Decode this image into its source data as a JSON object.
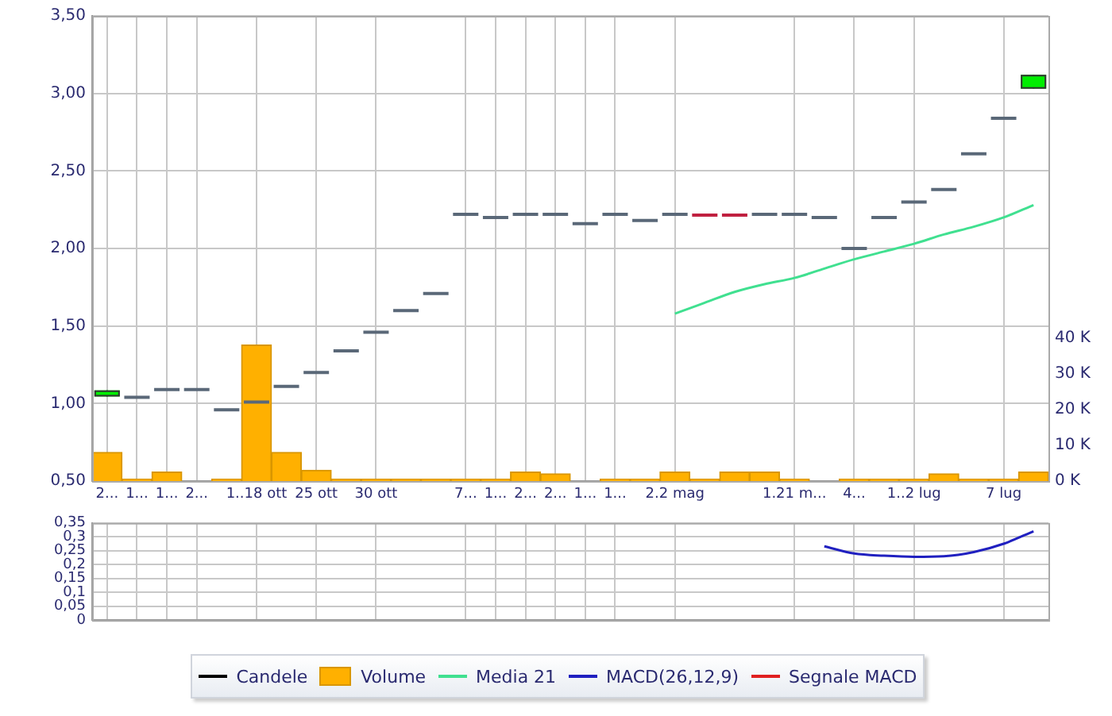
{
  "chart_data": [
    {
      "type": "candlestick",
      "legend": "bottom",
      "categories": [
        "2...",
        "1...",
        "1...",
        "2...",
        null,
        "1..18 ott",
        null,
        "25 ott",
        null,
        "30 ott",
        null,
        null,
        "7...",
        "1...",
        "2...",
        "2...",
        "1...",
        "1...",
        null,
        "2.2 mag",
        null,
        null,
        null,
        "1.21 m...",
        null,
        "4...",
        null,
        "1..2 lug",
        null,
        null,
        "7 lug",
        null
      ],
      "ylim": [
        0.5,
        3.5
      ],
      "yticks": [
        {
          "value": 0.5,
          "label": "0,50"
        },
        {
          "value": 1,
          "label": "1,00"
        },
        {
          "value": 1.5,
          "label": "1,50"
        },
        {
          "value": 2,
          "label": "2,00"
        },
        {
          "value": 2.5,
          "label": "2,50"
        },
        {
          "value": 3,
          "label": "3,00"
        },
        {
          "value": 3.5,
          "label": "3,50"
        }
      ],
      "y2lim": [
        0,
        130
      ],
      "y2ticks": [
        {
          "value": 0,
          "label": "0 K"
        },
        {
          "value": 10,
          "label": "10 K"
        },
        {
          "value": 20,
          "label": "20 K"
        },
        {
          "value": 30,
          "label": "30 K"
        },
        {
          "value": 40,
          "label": "40 K"
        }
      ],
      "grid": true,
      "series": [
        {
          "name": "Candele",
          "type": "candlestick",
          "color": "#000000",
          "ohlc": [
            [
              1.045,
              1.085,
              1.045,
              1.085
            ],
            [
              1.04,
              1.04,
              1.04,
              1.04
            ],
            [
              1.09,
              1.09,
              1.09,
              1.09
            ],
            [
              1.09,
              1.09,
              1.09,
              1.09
            ],
            [
              0.96,
              0.96,
              0.96,
              0.96
            ],
            [
              1.01,
              1.01,
              1.01,
              1.01
            ],
            [
              1.11,
              1.11,
              1.11,
              1.11
            ],
            [
              1.2,
              1.2,
              1.2,
              1.2
            ],
            [
              1.34,
              1.34,
              1.34,
              1.34
            ],
            [
              1.46,
              1.46,
              1.46,
              1.46
            ],
            [
              1.6,
              1.6,
              1.6,
              1.6
            ],
            [
              1.71,
              1.71,
              1.71,
              1.71
            ],
            [
              2.22,
              2.22,
              2.22,
              2.22
            ],
            [
              2.2,
              2.2,
              2.2,
              2.2
            ],
            [
              2.22,
              2.22,
              2.22,
              2.22
            ],
            [
              2.22,
              2.22,
              2.22,
              2.22
            ],
            [
              2.16,
              2.16,
              2.16,
              2.16
            ],
            [
              2.22,
              2.22,
              2.22,
              2.22
            ],
            [
              2.18,
              2.18,
              2.18,
              2.18
            ],
            [
              2.22,
              2.22,
              2.22,
              2.22
            ],
            [
              2.215,
              2.215,
              2.205,
              2.205
            ],
            [
              2.215,
              2.215,
              2.205,
              2.205
            ],
            [
              2.22,
              2.22,
              2.22,
              2.22
            ],
            [
              2.22,
              2.22,
              2.22,
              2.22
            ],
            [
              2.2,
              2.2,
              2.2,
              2.2
            ],
            [
              2.0,
              2.0,
              2.0,
              2.0
            ],
            [
              2.2,
              2.2,
              2.2,
              2.2
            ],
            [
              2.3,
              2.3,
              2.3,
              2.3
            ],
            [
              2.38,
              2.38,
              2.38,
              2.38
            ],
            [
              2.61,
              2.61,
              2.61,
              2.61
            ],
            [
              2.84,
              2.84,
              2.84,
              2.84
            ],
            [
              3.03,
              3.12,
              3.03,
              3.12
            ]
          ],
          "colors": [
            "#00ee00",
            "#5a6878",
            "#5a6878",
            "#5a6878",
            "#5a6878",
            "#5a6878",
            "#5a6878",
            "#5a6878",
            "#5a6878",
            "#5a6878",
            "#5a6878",
            "#5a6878",
            "#5a6878",
            "#5a6878",
            "#5a6878",
            "#5a6878",
            "#5a6878",
            "#5a6878",
            "#5a6878",
            "#5a6878",
            "#c02040",
            "#c02040",
            "#5a6878",
            "#5a6878",
            "#5a6878",
            "#5a6878",
            "#5a6878",
            "#5a6878",
            "#5a6878",
            "#5a6878",
            "#5a6878",
            "#00ee00"
          ]
        },
        {
          "name": "Volume",
          "type": "bar",
          "axis": "y2",
          "color": "#ffb000",
          "values": [
            8,
            0.5,
            2.5,
            0,
            0.5,
            38,
            8,
            3,
            0.5,
            0.5,
            0.5,
            0.5,
            0.5,
            0.5,
            2.5,
            2,
            0,
            0.5,
            0.5,
            2.5,
            0.5,
            2.5,
            2.5,
            0.5,
            0,
            0.5,
            0.5,
            0.5,
            2,
            0.5,
            0.5,
            2.5
          ]
        },
        {
          "name": "Media 21",
          "type": "line",
          "color": "#40e090",
          "values": [
            null,
            null,
            null,
            null,
            null,
            null,
            null,
            null,
            null,
            null,
            null,
            null,
            null,
            null,
            null,
            null,
            null,
            null,
            null,
            1.58,
            1.65,
            1.72,
            1.77,
            1.81,
            1.87,
            1.93,
            1.98,
            2.03,
            2.09,
            2.14,
            2.2,
            2.28
          ]
        }
      ]
    },
    {
      "type": "line",
      "categories": [
        null,
        null,
        null,
        null,
        null,
        null,
        null,
        null,
        null,
        null,
        null,
        null,
        null,
        null,
        null,
        null,
        null,
        null,
        null,
        null,
        null,
        null,
        null,
        null,
        null,
        null,
        null,
        null,
        null,
        null,
        null,
        null
      ],
      "ylim": [
        0,
        0.35
      ],
      "yticks": [
        0,
        {
          "value": 0.05,
          "label": "0,05"
        },
        {
          "value": 0.1,
          "label": "0,1"
        },
        {
          "value": 0.15,
          "label": "0,15"
        },
        {
          "value": 0.2,
          "label": "0,2"
        },
        {
          "value": 0.25,
          "label": "0,25"
        },
        {
          "value": 0.3,
          "label": "0,3"
        },
        {
          "value": 0.35,
          "label": "0,35"
        }
      ],
      "tick_labels": "y",
      "grid": true,
      "series": [
        {
          "name": "MACD(26,12,9)",
          "type": "line",
          "color": "#2020c0",
          "values": [
            null,
            null,
            null,
            null,
            null,
            null,
            null,
            null,
            null,
            null,
            null,
            null,
            null,
            null,
            null,
            null,
            null,
            null,
            null,
            null,
            null,
            null,
            null,
            null,
            0.266,
            0.24,
            0.232,
            0.228,
            0.23,
            0.245,
            0.275,
            0.32
          ]
        },
        {
          "name": "Segnale MACD",
          "type": "line",
          "color": "#e02020",
          "values": [
            null,
            null,
            null,
            null,
            null,
            null,
            null,
            null,
            null,
            null,
            null,
            null,
            null,
            null,
            null,
            null,
            null,
            null,
            null,
            null,
            null,
            null,
            null,
            null,
            null,
            null,
            null,
            null,
            null,
            null,
            null,
            null
          ]
        }
      ]
    }
  ]
}
